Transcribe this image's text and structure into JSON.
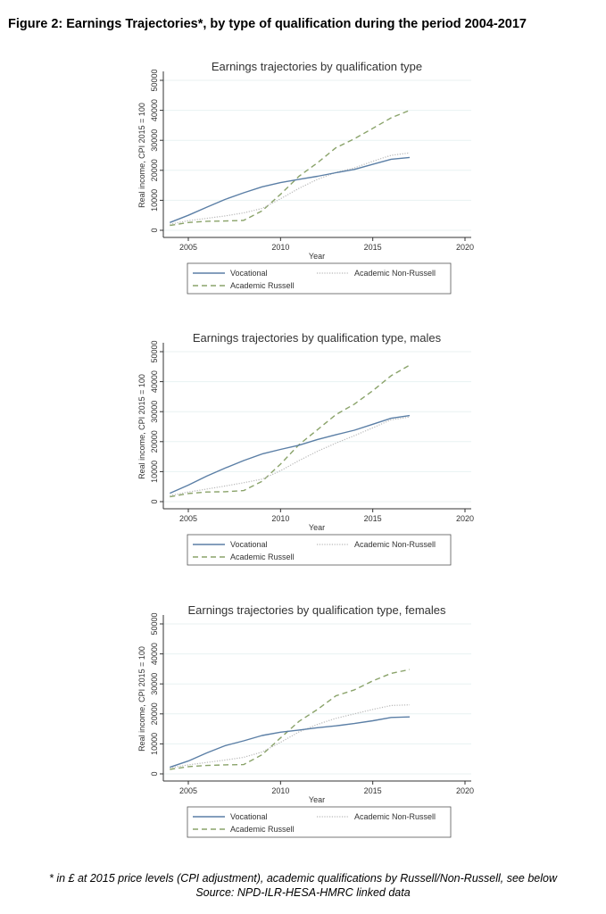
{
  "figure_title": "Figure 2: Earnings Trajectories*, by type of qualification during the period 2004-2017",
  "footnote": "* in £ at 2015 price levels (CPI adjustment), academic qualifications by Russell/Non-Russell, see below",
  "source": "Source: NPD-ILR-HESA-HMRC linked data",
  "colors": {
    "vocational": "#5b7fa6",
    "russell": "#8aa36a",
    "nonrussell": "#b8b8b8"
  },
  "chart_data": [
    {
      "type": "line",
      "title": "Earnings trajectories by qualification type",
      "xlabel": "Year",
      "ylabel": "Real income, CPI 2015 = 100",
      "xlim": [
        2004,
        2020
      ],
      "ylim": [
        0,
        50000
      ],
      "xticks": [
        "2005",
        "2010",
        "2015",
        "2020"
      ],
      "yticks": [
        "0",
        "10000",
        "20000",
        "30000",
        "40000",
        "50000"
      ],
      "grid": true,
      "legend": "bottom",
      "x": [
        2004,
        2005,
        2006,
        2007,
        2008,
        2009,
        2010,
        2011,
        2012,
        2013,
        2014,
        2015,
        2016,
        2017
      ],
      "series": [
        {
          "name": "Vocational",
          "style": "solid",
          "values": [
            2600,
            5000,
            7700,
            10300,
            12500,
            14500,
            15900,
            17000,
            18000,
            19200,
            20300,
            22000,
            23700,
            24300
          ]
        },
        {
          "name": "Academic Non-Russell",
          "style": "dotted",
          "values": [
            2000,
            3200,
            4000,
            4800,
            5800,
            7300,
            10500,
            14000,
            17000,
            19300,
            20800,
            23000,
            25000,
            25800
          ]
        },
        {
          "name": "Academic Russell",
          "style": "dashed",
          "values": [
            1600,
            2600,
            3000,
            3100,
            3300,
            6500,
            12000,
            18000,
            22500,
            27500,
            30500,
            34000,
            37500,
            40000
          ]
        }
      ]
    },
    {
      "type": "line",
      "title": "Earnings trajectories by qualification type, males",
      "xlabel": "Year",
      "ylabel": "Real income, CPI 2015 = 100",
      "xlim": [
        2004,
        2020
      ],
      "ylim": [
        0,
        50000
      ],
      "xticks": [
        "2005",
        "2010",
        "2015",
        "2020"
      ],
      "yticks": [
        "0",
        "10000",
        "20000",
        "30000",
        "40000",
        "50000"
      ],
      "grid": true,
      "legend": "bottom",
      "x": [
        2004,
        2005,
        2006,
        2007,
        2008,
        2009,
        2010,
        2011,
        2012,
        2013,
        2014,
        2015,
        2016,
        2017
      ],
      "series": [
        {
          "name": "Vocational",
          "style": "solid",
          "values": [
            2800,
            5500,
            8500,
            11200,
            13700,
            15900,
            17400,
            18800,
            20700,
            22300,
            23800,
            25800,
            27800,
            28700
          ]
        },
        {
          "name": "Academic Non-Russell",
          "style": "dotted",
          "values": [
            2000,
            3200,
            4200,
            5200,
            6300,
            7500,
            10300,
            13700,
            16800,
            19500,
            22000,
            24600,
            27300,
            28200
          ]
        },
        {
          "name": "Academic Russell",
          "style": "dashed",
          "values": [
            1600,
            2700,
            3200,
            3300,
            3700,
            6800,
            12500,
            19000,
            24000,
            29000,
            32500,
            37000,
            42000,
            45500
          ]
        }
      ]
    },
    {
      "type": "line",
      "title": "Earnings trajectories by qualification type, females",
      "xlabel": "Year",
      "ylabel": "Real income, CPI 2015 = 100",
      "xlim": [
        2004,
        2020
      ],
      "ylim": [
        0,
        50000
      ],
      "xticks": [
        "2005",
        "2010",
        "2015",
        "2020"
      ],
      "yticks": [
        "0",
        "10000",
        "20000",
        "30000",
        "40000",
        "50000"
      ],
      "grid": true,
      "legend": "bottom",
      "x": [
        2004,
        2005,
        2006,
        2007,
        2008,
        2009,
        2010,
        2011,
        2012,
        2013,
        2014,
        2015,
        2016,
        2017
      ],
      "series": [
        {
          "name": "Vocational",
          "style": "solid",
          "values": [
            2200,
            4300,
            7000,
            9400,
            11000,
            12800,
            13900,
            14600,
            15400,
            16000,
            16800,
            17700,
            18800,
            19000
          ]
        },
        {
          "name": "Academic Non-Russell",
          "style": "dotted",
          "values": [
            2000,
            3000,
            3800,
            4600,
            5500,
            7300,
            10500,
            14000,
            16500,
            18500,
            20000,
            21500,
            22800,
            23000
          ]
        },
        {
          "name": "Academic Russell",
          "style": "dashed",
          "values": [
            1500,
            2400,
            2800,
            3000,
            3100,
            6400,
            12000,
            17500,
            21500,
            26000,
            28000,
            31000,
            33500,
            34800
          ]
        }
      ]
    }
  ]
}
